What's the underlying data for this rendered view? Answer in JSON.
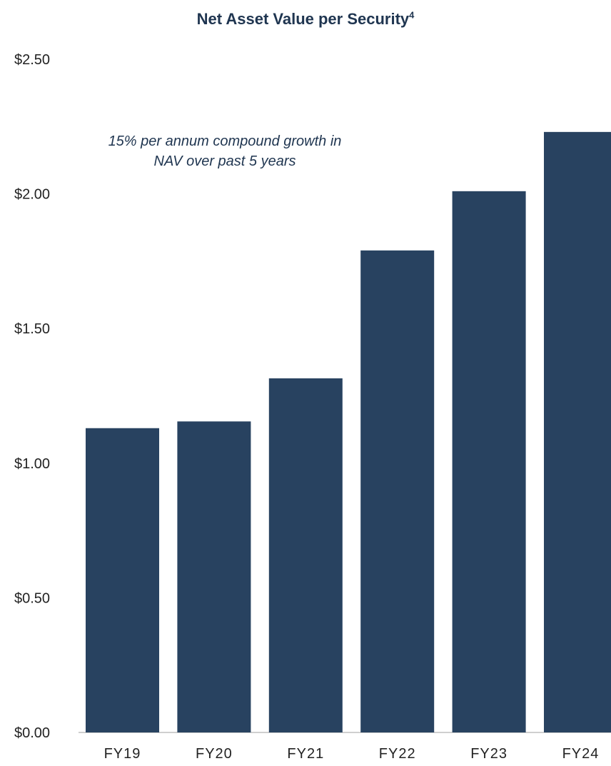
{
  "chart_data": {
    "type": "bar",
    "title": "Net Asset Value per Security",
    "title_superscript": "4",
    "categories": [
      "FY19",
      "FY20",
      "FY21",
      "FY22",
      "FY23",
      "FY24"
    ],
    "values": [
      1.13,
      1.155,
      1.315,
      1.79,
      2.01,
      2.23
    ],
    "ylim": [
      0,
      2.5
    ],
    "yticks": [
      0,
      0.5,
      1.0,
      1.5,
      2.0,
      2.5
    ],
    "ytick_labels": [
      "$0.00",
      "$0.50",
      "$1.00",
      "$1.50",
      "$2.00",
      "$2.50"
    ],
    "xlabel": "",
    "ylabel": "",
    "grid": false,
    "bar_color": "#284260",
    "annotation_lines": [
      "15% per annum compound growth in",
      "NAV over past 5 years"
    ]
  }
}
